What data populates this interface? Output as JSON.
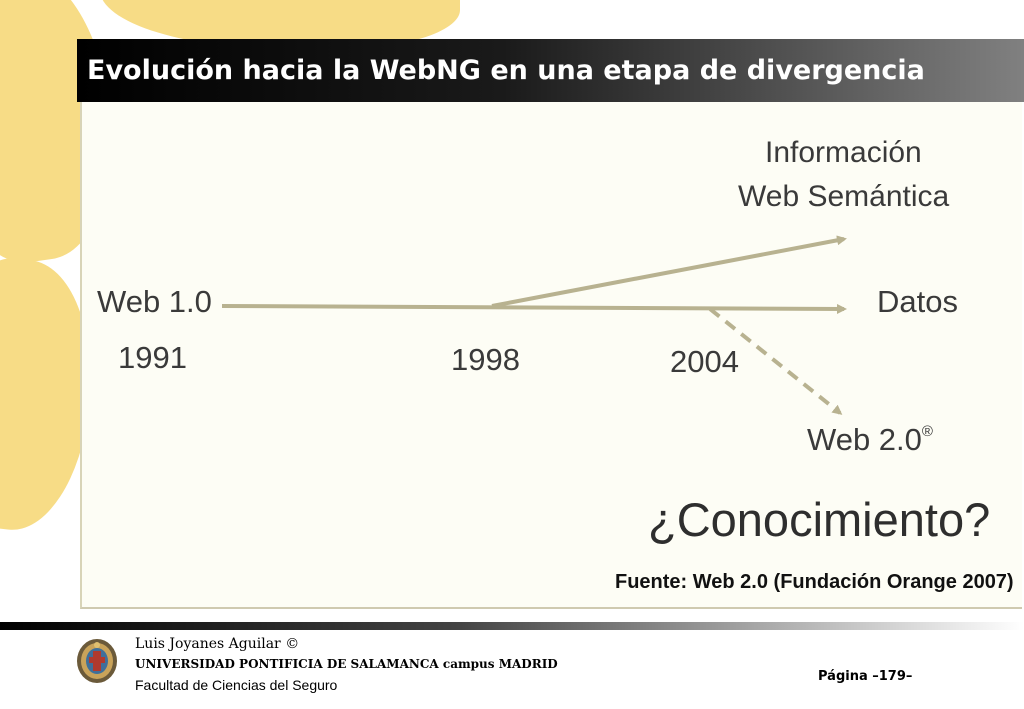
{
  "slide": {
    "title": "Evolución hacia la WebNG en una etapa de divergencia"
  },
  "diagram": {
    "label_informacion": "Información",
    "label_web_semantica": "Web Semántica",
    "label_web1": "Web 1.0",
    "label_datos": "Datos",
    "year_1991": "1991",
    "year_1998": "1998",
    "year_2004": "2004",
    "label_web2": "Web 2.0",
    "web2_mark": "®",
    "question": "¿Conocimiento?",
    "source": "Fuente: Web 2.0 (Fundación Orange  2007)",
    "line_color": "#b8b290"
  },
  "footer": {
    "author": "Luis Joyanes Aguilar ©",
    "university": "UNIVERSIDAD PONTIFICIA DE SALAMANCA campus  MADRID",
    "faculty": "Facultad de Ciencias del Seguro",
    "page_label": "Página   –179–",
    "logo_icon": "university-seal-icon"
  }
}
